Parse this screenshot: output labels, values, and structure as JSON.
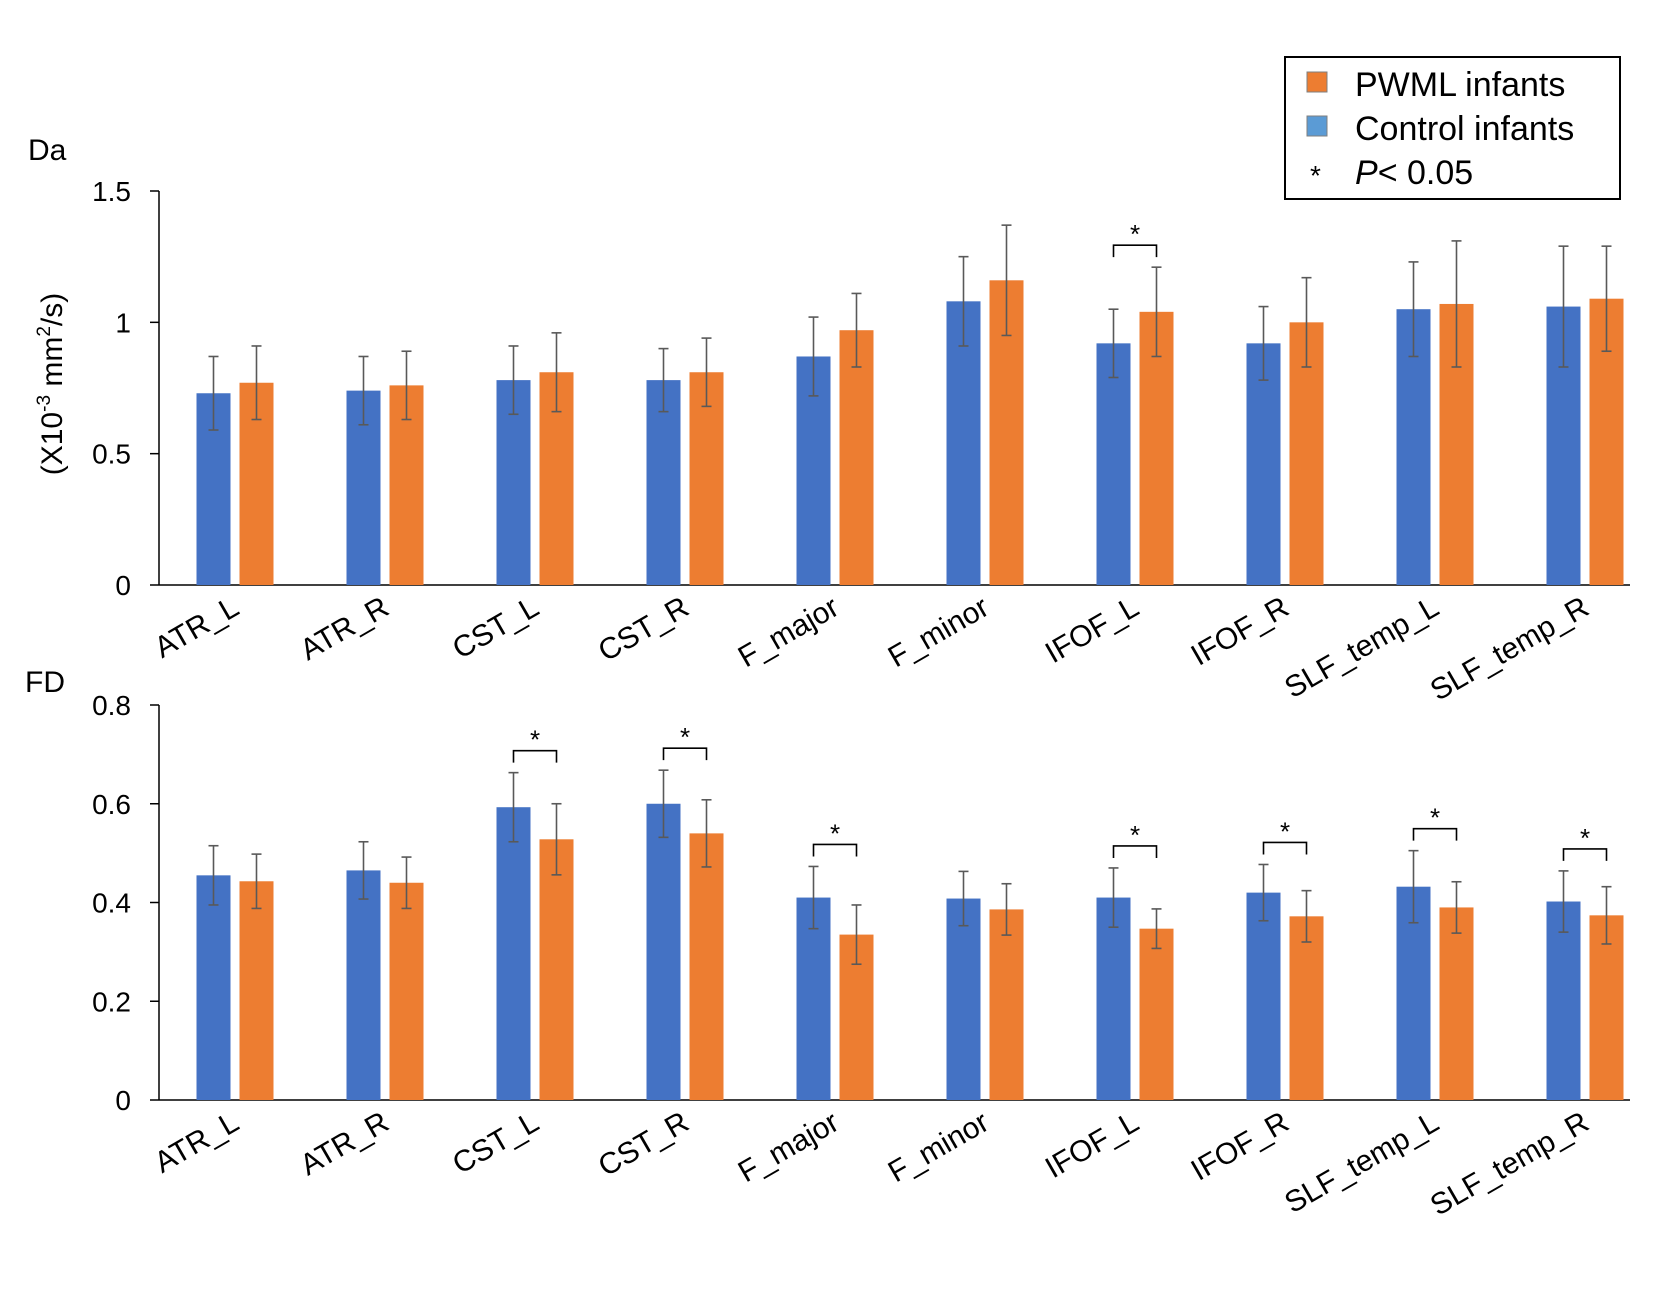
{
  "legend": {
    "items": [
      {
        "label": "PWML infants",
        "color": "#ED7D31",
        "kind": "swatch"
      },
      {
        "label": "Control infants",
        "color": "#5B9BD5",
        "kind": "swatch"
      }
    ],
    "sig_symbol": "*",
    "sig_p": "P",
    "sig_rest": "< 0.05"
  },
  "chart_data": [
    {
      "type": "bar",
      "panel_label": "Da",
      "ylabel": "(X10-3 mm2/s)",
      "ylabel_parts": {
        "pre": "(X10",
        "sup1": "-3",
        "mid": " mm",
        "sup2": "2",
        "post": "/s)"
      },
      "ylim": [
        0,
        1.5
      ],
      "yticks": [
        0,
        0.5,
        1,
        1.5
      ],
      "ytick_labels": [
        "0",
        "0.5",
        "1",
        "1.5"
      ],
      "categories": [
        "ATR_L",
        "ATR_R",
        "CST_L",
        "CST_R",
        "F_major",
        "F_minor",
        "IFOF_L",
        "IFOF_R",
        "SLF_temp_L",
        "SLF_temp_R"
      ],
      "series": [
        {
          "name": "Control infants",
          "color": "#4472C4",
          "values": [
            0.73,
            0.74,
            0.78,
            0.78,
            0.87,
            1.08,
            0.92,
            0.92,
            1.05,
            1.06
          ],
          "errors": [
            0.14,
            0.13,
            0.13,
            0.12,
            0.15,
            0.17,
            0.13,
            0.14,
            0.18,
            0.23
          ]
        },
        {
          "name": "PWML infants",
          "color": "#ED7D31",
          "values": [
            0.77,
            0.76,
            0.81,
            0.81,
            0.97,
            1.16,
            1.04,
            1.0,
            1.07,
            1.09
          ],
          "errors": [
            0.14,
            0.13,
            0.15,
            0.13,
            0.14,
            0.21,
            0.17,
            0.17,
            0.24,
            0.2
          ]
        }
      ],
      "significant": [
        "IFOF_L"
      ],
      "grid": false
    },
    {
      "type": "bar",
      "panel_label": "FD",
      "ylabel": "",
      "ylim": [
        0,
        0.8
      ],
      "yticks": [
        0,
        0.2,
        0.4,
        0.6,
        0.8
      ],
      "ytick_labels": [
        "0",
        "0.2",
        "0.4",
        "0.6",
        "0.8"
      ],
      "categories": [
        "ATR_L",
        "ATR_R",
        "CST_L",
        "CST_R",
        "F_major",
        "F_minor",
        "IFOF_L",
        "IFOF_R",
        "SLF_temp_L",
        "SLF_temp_R"
      ],
      "series": [
        {
          "name": "Control infants",
          "color": "#4472C4",
          "values": [
            0.455,
            0.465,
            0.593,
            0.6,
            0.41,
            0.408,
            0.41,
            0.42,
            0.432,
            0.402
          ],
          "errors": [
            0.06,
            0.058,
            0.07,
            0.068,
            0.063,
            0.055,
            0.06,
            0.057,
            0.073,
            0.062
          ]
        },
        {
          "name": "PWML infants",
          "color": "#ED7D31",
          "values": [
            0.443,
            0.44,
            0.528,
            0.54,
            0.335,
            0.386,
            0.347,
            0.372,
            0.39,
            0.374
          ],
          "errors": [
            0.055,
            0.052,
            0.072,
            0.068,
            0.06,
            0.052,
            0.04,
            0.052,
            0.052,
            0.058
          ]
        }
      ],
      "significant": [
        "CST_L",
        "CST_R",
        "F_major",
        "IFOF_L",
        "IFOF_R",
        "SLF_temp_L",
        "SLF_temp_R"
      ],
      "grid": false
    }
  ]
}
